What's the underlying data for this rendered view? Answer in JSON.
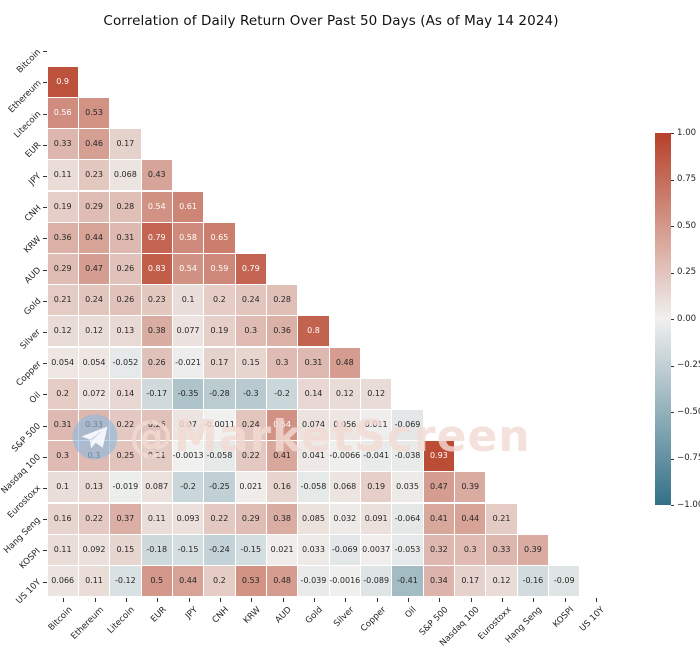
{
  "title": "Correlation of Daily Return Over Past 50 Days (As of May 14 2024)",
  "watermark": {
    "text": "@MarketScreen",
    "icon": "telegram-icon"
  },
  "colors": {
    "background": "#ffffff",
    "positive_end": "#b74028",
    "midpoint": "#f0f0ee",
    "negative_end": "#347188",
    "annotation_dark": "#262626",
    "annotation_light": "#ffffff",
    "axis_text": "#262626"
  },
  "colorbar": {
    "ticks": [
      "1.00",
      "0.75",
      "0.50",
      "0.25",
      "0.00",
      "−0.25",
      "−0.50",
      "−0.75",
      "−1.00"
    ],
    "vmax": 1,
    "vmin": -1
  },
  "chart_data": {
    "type": "heatmap",
    "title": "Correlation of Daily Return Over Past 50 Days (As of May 14 2024)",
    "labels": [
      "Bitcoin",
      "Ethereum",
      "Litecoin",
      "EUR",
      "JPY",
      "CNH",
      "KRW",
      "AUD",
      "Gold",
      "Silver",
      "Copper",
      "Oil",
      "S&P 500",
      "Nasdaq 100",
      "Eurostoxx",
      "Hang Seng",
      "KOSPI",
      "US 10Y"
    ],
    "mask": "upper-triangle-and-diagonal-hidden",
    "vmin": -1,
    "vmax": 1,
    "rows": [
      {
        "label": "Bitcoin",
        "values": []
      },
      {
        "label": "Ethereum",
        "values": [
          0.9
        ]
      },
      {
        "label": "Litecoin",
        "values": [
          0.56,
          0.53
        ]
      },
      {
        "label": "EUR",
        "values": [
          0.33,
          0.46,
          0.17
        ]
      },
      {
        "label": "JPY",
        "values": [
          0.11,
          0.23,
          0.068,
          0.43
        ]
      },
      {
        "label": "CNH",
        "values": [
          0.19,
          0.29,
          0.28,
          0.54,
          0.61
        ]
      },
      {
        "label": "KRW",
        "values": [
          0.36,
          0.44,
          0.31,
          0.79,
          0.58,
          0.65
        ]
      },
      {
        "label": "AUD",
        "values": [
          0.29,
          0.47,
          0.26,
          0.83,
          0.54,
          0.59,
          0.79
        ]
      },
      {
        "label": "Gold",
        "values": [
          0.21,
          0.24,
          0.26,
          0.23,
          0.1,
          0.2,
          0.24,
          0.28
        ]
      },
      {
        "label": "Silver",
        "values": [
          0.12,
          0.12,
          0.13,
          0.38,
          0.077,
          0.19,
          0.3,
          0.36,
          0.8
        ]
      },
      {
        "label": "Copper",
        "values": [
          0.054,
          0.054,
          -0.052,
          0.26,
          -0.021,
          0.17,
          0.15,
          0.3,
          0.31,
          0.48
        ]
      },
      {
        "label": "Oil",
        "values": [
          0.2,
          0.072,
          0.14,
          -0.17,
          -0.35,
          -0.28,
          -0.3,
          -0.2,
          0.14,
          0.12,
          0.12
        ]
      },
      {
        "label": "S&P 500",
        "values": [
          0.31,
          0.33,
          0.22,
          0.26,
          0.07,
          -0.0011,
          0.24,
          0.54,
          0.074,
          0.056,
          0.011,
          -0.069
        ]
      },
      {
        "label": "Nasdaq 100",
        "values": [
          0.3,
          0.3,
          0.25,
          0.21,
          -0.0013,
          -0.058,
          0.22,
          0.41,
          0.041,
          -0.0066,
          -0.041,
          -0.038,
          0.93
        ]
      },
      {
        "label": "Eurostoxx",
        "values": [
          0.1,
          0.13,
          -0.019,
          0.087,
          -0.2,
          -0.25,
          0.021,
          0.16,
          -0.058,
          0.068,
          0.19,
          0.035,
          0.47,
          0.39
        ]
      },
      {
        "label": "Hang Seng",
        "values": [
          0.16,
          0.22,
          0.37,
          0.11,
          0.093,
          0.22,
          0.29,
          0.38,
          0.085,
          0.032,
          0.091,
          -0.064,
          0.41,
          0.44,
          0.21
        ]
      },
      {
        "label": "KOSPI",
        "values": [
          0.11,
          0.092,
          0.15,
          -0.18,
          -0.15,
          -0.24,
          -0.15,
          0.021,
          0.033,
          -0.069,
          0.0037,
          -0.053,
          0.32,
          0.3,
          0.33,
          0.39
        ]
      },
      {
        "label": "US 10Y",
        "values": [
          0.066,
          0.11,
          -0.12,
          0.5,
          0.44,
          0.2,
          0.53,
          0.48,
          -0.039,
          -0.0016,
          -0.089,
          -0.41,
          0.34,
          0.17,
          0.12,
          -0.16,
          -0.09
        ]
      }
    ]
  }
}
